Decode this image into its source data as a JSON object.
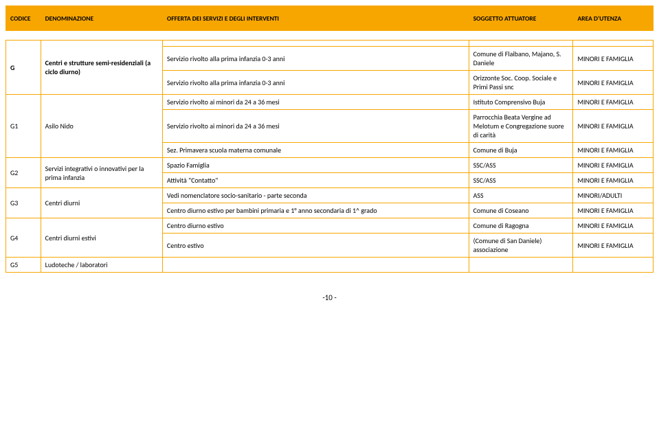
{
  "header": {
    "codice": "CODICE",
    "denominazione": "DENOMINAZIONE",
    "offerta": "OFFERTA DEI SERVIZI E DEGLI INTERVENTI",
    "soggetto": "SOGGETTO ATTUATORE",
    "area": "AREA D'UTENZA"
  },
  "rows": [
    {
      "codice": "G",
      "denom": "Centri e strutture semi-residenziali (a ciclo diurno)",
      "offerta": "",
      "sogg": "",
      "area": "",
      "bold": true
    },
    {
      "codice": "",
      "denom": "",
      "offerta": "Servizio rivolto alla prima infanzia 0-3 anni",
      "sogg": "Comune di Flaibano, Majano, S. Daniele",
      "area": "MINORI E FAMIGLIA"
    },
    {
      "codice": "",
      "denom": "",
      "offerta": "Servizio rivolto alla prima infanzia 0-3 anni",
      "sogg": "Orizzonte Soc. Coop. Sociale e Primi Passi snc",
      "area": "MINORI E FAMIGLIA"
    },
    {
      "codice": "G1",
      "denom": "Asilo Nido",
      "offerta": "Servizio rivolto ai minori da 24 a 36 mesi",
      "sogg": "Istituto Comprensivo Buja",
      "area": "MINORI E FAMIGLIA"
    },
    {
      "codice": "",
      "denom": "",
      "offerta": "Servizio rivolto ai minori da 24 a 36 mesi",
      "sogg": "Parrocchia Beata Vergine ad Melotum e Congregazione suore di carità",
      "area": "MINORI E FAMIGLIA"
    },
    {
      "codice": "",
      "denom": "",
      "offerta": "Sez. Primavera scuola materna comunale",
      "sogg": "Comune di Buja",
      "area": "MINORI E FAMIGLIA"
    },
    {
      "codice": "G2",
      "denom": "Servizi integrativi o innovativi per la prima infanzia",
      "offerta": "Spazio Famiglia",
      "sogg": "SSC/ASS",
      "area": "MINORI E FAMIGLIA"
    },
    {
      "codice": "",
      "denom": "",
      "offerta": "Attività \"Contatto\"",
      "sogg": "SSC/ASS",
      "area": "MINORI E FAMIGLIA"
    },
    {
      "codice": "G3",
      "denom": "Centri diurni",
      "offerta": "Vedi nomenclatore socio-sanitario - parte seconda",
      "sogg": "ASS",
      "area": "MINORI/ADULTI"
    },
    {
      "codice": "",
      "denom": "",
      "offerta": "Centro diurno estivo per bambini primaria e 1° anno secondaria di 1^ grado",
      "sogg": "Comune di Coseano",
      "area": "MINORI E FAMIGLIA"
    },
    {
      "codice": "G4",
      "denom": "Centri diurni estivi",
      "offerta": "Centro diurno estivo",
      "sogg": "Comune di Ragogna",
      "area": "MINORI E FAMIGLIA"
    },
    {
      "codice": "",
      "denom": "",
      "offerta": "Centro estivo",
      "sogg": "(Comune di San Daniele) associazione",
      "area": "MINORI E FAMIGLIA"
    },
    {
      "codice": "G5",
      "denom": "Ludoteche / laboratori",
      "offerta": "",
      "sogg": "",
      "area": ""
    }
  ],
  "pagenum": "-10 -"
}
